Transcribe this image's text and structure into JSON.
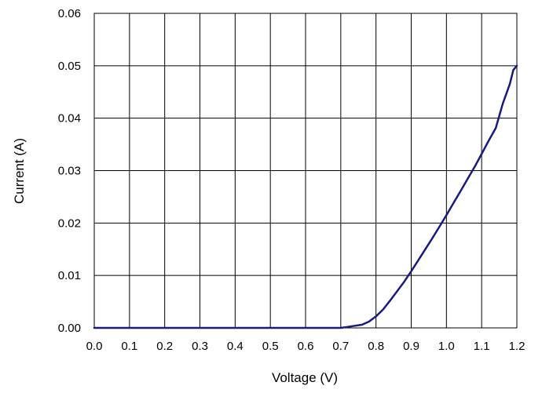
{
  "chart_data": {
    "type": "line",
    "title": "",
    "xlabel": "Voltage (V)",
    "ylabel": "Current (A)",
    "xlim": [
      0.0,
      1.2
    ],
    "ylim": [
      0.0,
      0.06
    ],
    "x_ticks": [
      "0.0",
      "0.1",
      "0.2",
      "0.3",
      "0.4",
      "0.5",
      "0.6",
      "0.7",
      "0.8",
      "0.9",
      "1.0",
      "1.1",
      "1.2"
    ],
    "y_ticks": [
      "0.00",
      "0.01",
      "0.02",
      "0.03",
      "0.04",
      "0.05",
      "0.06"
    ],
    "grid": true,
    "legend": "none",
    "series": [
      {
        "color": "#1a1a80",
        "x": [
          0.0,
          0.1,
          0.2,
          0.3,
          0.4,
          0.5,
          0.6,
          0.65,
          0.7,
          0.72,
          0.74,
          0.76,
          0.78,
          0.8,
          0.82,
          0.84,
          0.86,
          0.88,
          0.9,
          0.92,
          0.94,
          0.96,
          0.98,
          1.0,
          1.02,
          1.04,
          1.06,
          1.08,
          1.1,
          1.12,
          1.14,
          1.16,
          1.18,
          1.19,
          1.2
        ],
        "y": [
          0.0,
          0.0,
          0.0,
          0.0,
          0.0,
          0.0,
          0.0,
          0.0,
          0.0,
          0.0002,
          0.0004,
          0.0006,
          0.0012,
          0.0022,
          0.0035,
          0.0052,
          0.007,
          0.0088,
          0.0108,
          0.0129,
          0.015,
          0.0171,
          0.0193,
          0.0215,
          0.0238,
          0.0261,
          0.0284,
          0.0307,
          0.0332,
          0.0357,
          0.0381,
          0.0428,
          0.0465,
          0.0492,
          0.05
        ]
      }
    ]
  }
}
